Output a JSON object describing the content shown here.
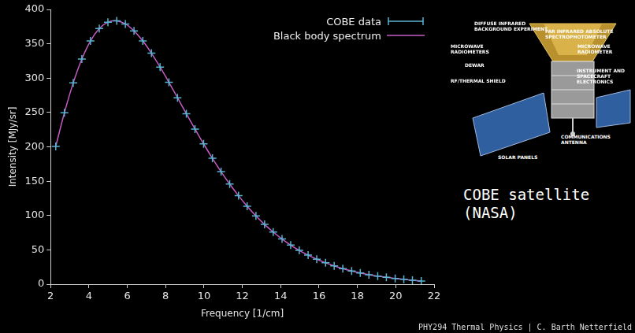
{
  "chart_data": {
    "type": "scatter",
    "x_label": "Frequency [1/cm]",
    "y_label": "Intensity [MJy/sr]",
    "x": [
      2.27,
      2.72,
      3.18,
      3.63,
      4.08,
      4.54,
      4.99,
      5.45,
      5.9,
      6.35,
      6.81,
      7.26,
      7.71,
      8.17,
      8.62,
      9.08,
      9.53,
      9.98,
      10.44,
      10.89,
      11.34,
      11.8,
      12.25,
      12.71,
      13.16,
      13.61,
      14.07,
      14.52,
      14.97,
      15.43,
      15.88,
      16.34,
      16.79,
      17.24,
      17.7,
      18.15,
      18.6,
      19.06,
      19.51,
      19.97,
      20.42,
      20.87,
      21.33
    ],
    "series": [
      {
        "name": "COBE data",
        "type": "scatter",
        "color": "#5ab4d2",
        "marker": "cross",
        "values": [
          200.7,
          249.5,
          293.0,
          327.8,
          354.1,
          372.1,
          381.5,
          383.5,
          378.9,
          368.8,
          354.1,
          336.3,
          316.1,
          293.9,
          271.4,
          248.2,
          225.9,
          204.3,
          183.3,
          163.8,
          145.8,
          128.8,
          113.6,
          99.5,
          87.0,
          75.9,
          65.8,
          57.0,
          49.2,
          42.3,
          36.4,
          31.1,
          26.6,
          22.6,
          19.3,
          16.4,
          13.8,
          11.7,
          9.9,
          8.4,
          7.1,
          5.8,
          4.5
        ]
      },
      {
        "name": "Black body spectrum",
        "type": "line",
        "color": "#c45cc4",
        "line_style": "solid",
        "values": [
          200.7,
          249.5,
          293.0,
          327.8,
          354.1,
          372.1,
          381.5,
          383.5,
          378.9,
          368.8,
          354.1,
          336.3,
          316.1,
          293.9,
          271.4,
          248.2,
          225.9,
          204.3,
          183.3,
          163.8,
          145.8,
          128.8,
          113.6,
          99.5,
          87.0,
          75.9,
          65.8,
          57.0,
          49.2,
          42.3,
          36.4,
          31.1,
          26.6,
          22.6,
          19.3,
          16.4,
          13.8,
          11.7,
          9.9,
          8.4,
          7.1,
          5.8,
          4.5
        ]
      }
    ],
    "xlim": [
      2,
      22
    ],
    "xticks": [
      2,
      4,
      6,
      8,
      10,
      12,
      14,
      16,
      18,
      20,
      22
    ],
    "ylim": [
      0,
      400
    ],
    "yticks": [
      0,
      50,
      100,
      150,
      200,
      250,
      300,
      350,
      400
    ],
    "grid": false,
    "legend": "upper right"
  },
  "side_panel": {
    "diagram_labels": [
      "DIFFUSE INFRARED BACKGROUND EXPERIMENT",
      "FAR INFRARED ABSOLUTE SPECTROPHOTOMETER",
      "MICROWAVE RADIOMETERS",
      "DEWAR",
      "MICROWAVE RADIOMETER",
      "RF/THERMAL SHIELD",
      "INSTRUMENT AND SPACECRAFT ELECTRONICS",
      "COMMUNICATIONS ANTENNA",
      "SOLAR PANELS"
    ],
    "caption": "COBE satellite (NASA)",
    "footer": "PHY294 Thermal Physics | C. Barth Netterfield"
  }
}
